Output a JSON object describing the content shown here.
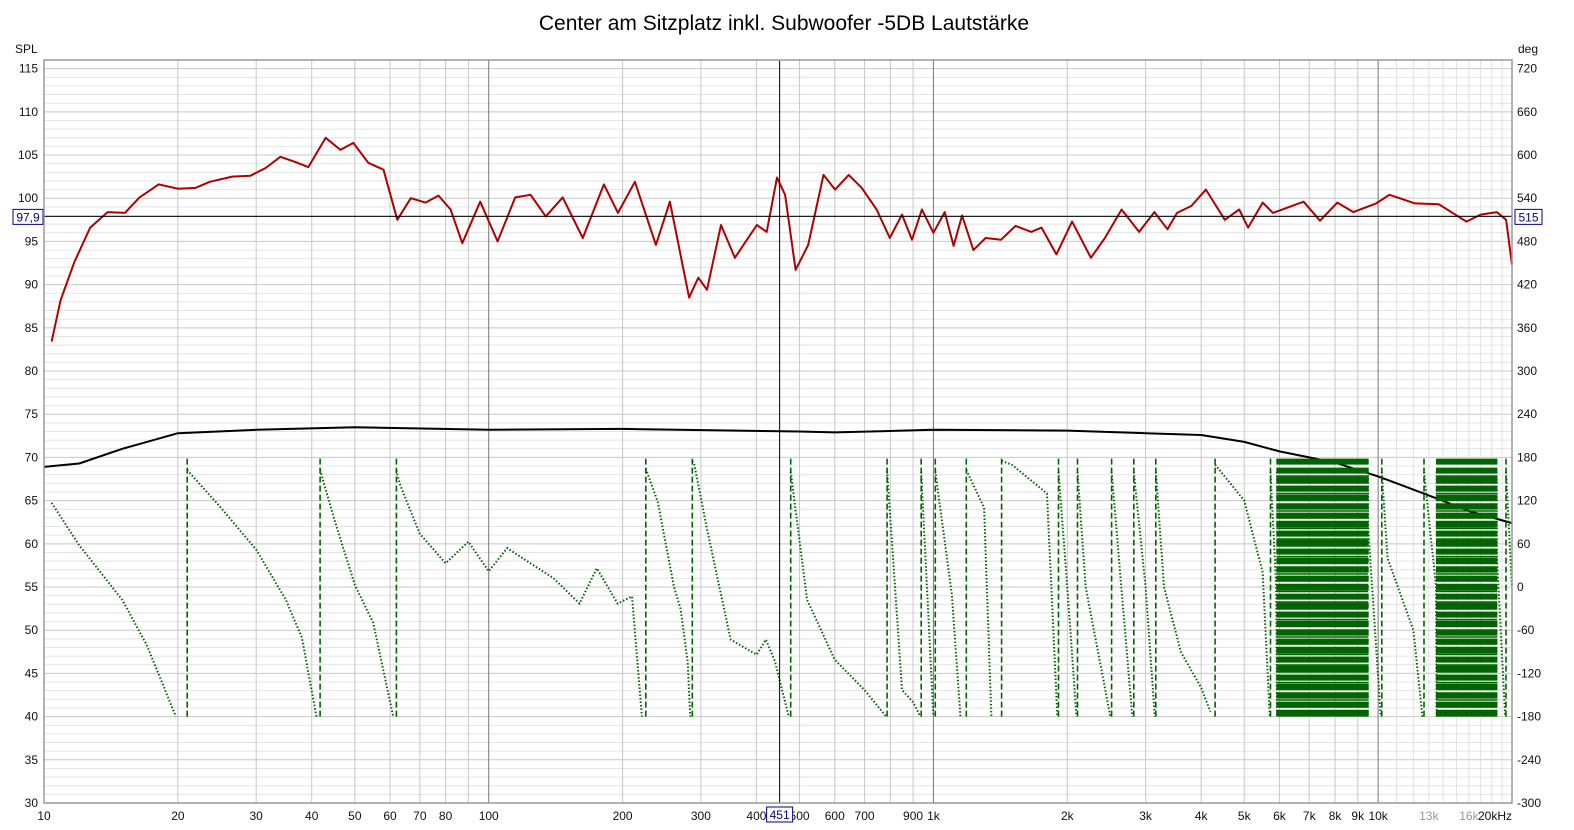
{
  "chart_data": {
    "type": "line",
    "title": "Center am Sitzplatz inkl. Subwoofer -5DB Lautstärke",
    "xlabel": "",
    "ylabel": "SPL",
    "y2label": "deg",
    "xscale": "log",
    "xlim": [
      10,
      20000
    ],
    "ylim": [
      30,
      116
    ],
    "y2lim": [
      -300,
      732
    ],
    "grid": true,
    "x_ticks": [
      {
        "v": 10,
        "t": "10"
      },
      {
        "v": 20,
        "t": "20"
      },
      {
        "v": 30,
        "t": "30"
      },
      {
        "v": 40,
        "t": "40"
      },
      {
        "v": 50,
        "t": "50"
      },
      {
        "v": 60,
        "t": "60"
      },
      {
        "v": 70,
        "t": "70"
      },
      {
        "v": 80,
        "t": "80"
      },
      {
        "v": 100,
        "t": "100"
      },
      {
        "v": 200,
        "t": "200"
      },
      {
        "v": 300,
        "t": "300"
      },
      {
        "v": 400,
        "t": "400"
      },
      {
        "v": 500,
        "t": "500"
      },
      {
        "v": 600,
        "t": "600"
      },
      {
        "v": 700,
        "t": "700"
      },
      {
        "v": 900,
        "t": "900"
      },
      {
        "v": 1000,
        "t": "1k"
      },
      {
        "v": 2000,
        "t": "2k"
      },
      {
        "v": 3000,
        "t": "3k"
      },
      {
        "v": 4000,
        "t": "4k"
      },
      {
        "v": 5000,
        "t": "5k"
      },
      {
        "v": 6000,
        "t": "6k"
      },
      {
        "v": 7000,
        "t": "7k"
      },
      {
        "v": 8000,
        "t": "8k"
      },
      {
        "v": 9000,
        "t": "9k"
      },
      {
        "v": 10000,
        "t": "10k"
      },
      {
        "v": 13000,
        "t": "13k",
        "dim": true
      },
      {
        "v": 16000,
        "t": "16k",
        "dim": true
      },
      {
        "v": 20000,
        "t": "20kHz"
      }
    ],
    "y_ticks": [
      "115",
      "110",
      "105",
      "100",
      "95",
      "90",
      "85",
      "80",
      "75",
      "70",
      "65",
      "60",
      "55",
      "50",
      "45",
      "40",
      "35",
      "30"
    ],
    "y2_ticks": [
      "720",
      "660",
      "600",
      "540",
      "480",
      "420",
      "360",
      "300",
      "240",
      "180",
      "120",
      "60",
      "0",
      "-60",
      "-120",
      "-180",
      "-240",
      "-300"
    ],
    "cursor": {
      "x": 451,
      "x_label": "451",
      "y": 97.9,
      "y_label": "97,9",
      "y2_label": "515"
    },
    "series": [
      {
        "key": "spl",
        "color": "#b00000",
        "style": "solid",
        "points": [
          [
            10.4,
            83.4
          ],
          [
            10.9,
            88.2
          ],
          [
            11.7,
            92.6
          ],
          [
            12.7,
            96.6
          ],
          [
            13.9,
            98.4
          ],
          [
            15.2,
            98.3
          ],
          [
            16.4,
            100.1
          ],
          [
            18.1,
            101.6
          ],
          [
            20,
            101.1
          ],
          [
            21.9,
            101.2
          ],
          [
            23.6,
            101.9
          ],
          [
            26.5,
            102.5
          ],
          [
            29.1,
            102.6
          ],
          [
            31.5,
            103.5
          ],
          [
            34,
            104.8
          ],
          [
            36.7,
            104.2
          ],
          [
            39.3,
            103.6
          ],
          [
            43,
            107
          ],
          [
            46.4,
            105.6
          ],
          [
            49.6,
            106.4
          ],
          [
            53.6,
            104.1
          ],
          [
            58,
            103.3
          ],
          [
            62.3,
            97.5
          ],
          [
            66.8,
            100
          ],
          [
            72.1,
            99.5
          ],
          [
            77.1,
            100.3
          ],
          [
            82.1,
            98.7
          ],
          [
            87.2,
            94.8
          ],
          [
            95.7,
            99.6
          ],
          [
            104.7,
            95
          ],
          [
            114.7,
            100.1
          ],
          [
            124.2,
            100.4
          ],
          [
            134.4,
            97.9
          ],
          [
            146.7,
            100.1
          ],
          [
            162.8,
            95.4
          ],
          [
            181.6,
            101.6
          ],
          [
            195.3,
            98.3
          ],
          [
            213.2,
            101.9
          ],
          [
            237.6,
            94.6
          ],
          [
            255.5,
            99.6
          ],
          [
            282.3,
            88.5
          ],
          [
            296,
            90.8
          ],
          [
            309.6,
            89.4
          ],
          [
            333,
            96.9
          ],
          [
            357.8,
            93.1
          ],
          [
            378.5,
            95
          ],
          [
            401,
            96.9
          ],
          [
            421.8,
            96.1
          ],
          [
            445,
            102.4
          ],
          [
            464,
            100.4
          ],
          [
            490,
            91.7
          ],
          [
            523,
            94.6
          ],
          [
            566,
            102.7
          ],
          [
            601,
            101
          ],
          [
            645,
            102.7
          ],
          [
            690,
            101.2
          ],
          [
            745,
            98.7
          ],
          [
            798,
            95.4
          ],
          [
            850,
            98.1
          ],
          [
            895,
            95.2
          ],
          [
            942,
            98.7
          ],
          [
            1000,
            96
          ],
          [
            1060,
            98.4
          ],
          [
            1110,
            94.5
          ],
          [
            1160,
            98
          ],
          [
            1230,
            94
          ],
          [
            1310,
            95.4
          ],
          [
            1420,
            95.2
          ],
          [
            1530,
            96.8
          ],
          [
            1660,
            96.1
          ],
          [
            1750,
            96.6
          ],
          [
            1890,
            93.5
          ],
          [
            2050,
            97.3
          ],
          [
            2260,
            93.1
          ],
          [
            2430,
            95.4
          ],
          [
            2650,
            98.7
          ],
          [
            2900,
            96.1
          ],
          [
            3140,
            98.4
          ],
          [
            3360,
            96.4
          ],
          [
            3530,
            98.3
          ],
          [
            3800,
            99.1
          ],
          [
            4100,
            101
          ],
          [
            4520,
            97.5
          ],
          [
            4870,
            98.7
          ],
          [
            5100,
            96.6
          ],
          [
            5500,
            99.5
          ],
          [
            5800,
            98.3
          ],
          [
            6800,
            99.6
          ],
          [
            7400,
            97.4
          ],
          [
            8100,
            99.5
          ],
          [
            8800,
            98.4
          ],
          [
            9900,
            99.4
          ],
          [
            10600,
            100.4
          ],
          [
            12100,
            99.4
          ],
          [
            13700,
            99.3
          ],
          [
            15800,
            97.3
          ],
          [
            17000,
            98.1
          ],
          [
            18500,
            98.4
          ],
          [
            19400,
            97.5
          ],
          [
            20000,
            92.3
          ]
        ]
      },
      {
        "key": "reference",
        "color": "#000000",
        "style": "solid",
        "points": [
          [
            10,
            68.9
          ],
          [
            12,
            69.3
          ],
          [
            15,
            71
          ],
          [
            20,
            72.8
          ],
          [
            30,
            73.2
          ],
          [
            50,
            73.5
          ],
          [
            100,
            73.2
          ],
          [
            200,
            73.3
          ],
          [
            500,
            73
          ],
          [
            600,
            72.9
          ],
          [
            1000,
            73.2
          ],
          [
            2000,
            73.1
          ],
          [
            3000,
            72.8
          ],
          [
            4000,
            72.6
          ],
          [
            5000,
            71.8
          ],
          [
            6000,
            70.7
          ],
          [
            7000,
            70
          ],
          [
            8000,
            69.4
          ],
          [
            10000,
            67.8
          ],
          [
            13000,
            65.6
          ],
          [
            16000,
            63.8
          ],
          [
            20000,
            62.4
          ]
        ]
      },
      {
        "key": "phase",
        "axis": "deg",
        "color": "#006400",
        "style": "dotted",
        "wrap": [
          -180,
          180
        ],
        "unwrapped_deg": [
          [
            10.4,
            117
          ],
          [
            12,
            58
          ],
          [
            15,
            -18
          ],
          [
            17,
            -80
          ],
          [
            19.8,
            -180
          ],
          [
            25,
            -250
          ],
          [
            30,
            -308
          ],
          [
            35,
            -378
          ],
          [
            38,
            -430
          ],
          [
            41,
            -540
          ],
          [
            45,
            -627
          ],
          [
            50,
            -717
          ],
          [
            55,
            -770
          ],
          [
            61,
            -900
          ],
          [
            63,
            -936
          ],
          [
            70,
            -1006
          ],
          [
            80,
            -1047
          ],
          [
            90,
            -1017
          ],
          [
            100,
            -1058
          ],
          [
            110,
            -1026
          ],
          [
            140,
            -1068
          ],
          [
            160,
            -1103
          ],
          [
            175,
            -1054
          ],
          [
            195,
            -1103
          ],
          [
            210,
            -1093
          ],
          [
            221,
            -1260
          ],
          [
            240,
            -1322
          ],
          [
            261,
            -1440
          ],
          [
            270,
            -1470
          ],
          [
            280,
            -1543
          ],
          [
            284,
            -1620
          ],
          [
            290,
            -1630
          ],
          [
            310,
            -1721
          ],
          [
            350,
            -1873
          ],
          [
            400,
            -1894
          ],
          [
            420,
            -1873
          ],
          [
            440,
            -1903
          ],
          [
            473,
            -1980
          ],
          [
            520,
            -2178
          ],
          [
            600,
            -2261
          ],
          [
            700,
            -2303
          ],
          [
            783,
            -2340
          ],
          [
            850,
            -2663
          ],
          [
            900,
            -2680
          ],
          [
            935,
            -2700
          ],
          [
            1000,
            -3060
          ],
          [
            1100,
            -3250
          ],
          [
            1150,
            -3420
          ],
          [
            1300,
            -3490
          ],
          [
            1350,
            -3780
          ],
          [
            1500,
            -3790
          ],
          [
            1800,
            -3830
          ],
          [
            1900,
            -4140
          ],
          [
            2000,
            -4320
          ],
          [
            2200,
            -4680
          ],
          [
            2500,
            -4860
          ],
          [
            2800,
            -5220
          ],
          [
            3000,
            -5400
          ],
          [
            3300,
            -5760
          ],
          [
            3600,
            -5850
          ],
          [
            4000,
            -5900
          ],
          [
            4300,
            -5950
          ],
          [
            5000,
            -6000
          ],
          [
            5500,
            -6100
          ],
          [
            5900,
            -6480
          ],
          [
            9500,
            -28000
          ],
          [
            10500,
            -28400
          ],
          [
            12000,
            -28500
          ],
          [
            13500,
            -28800
          ],
          [
            18500,
            -50000
          ],
          [
            20000,
            -50400
          ]
        ]
      }
    ]
  }
}
